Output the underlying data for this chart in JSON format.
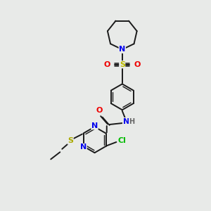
{
  "background_color": "#e8eae8",
  "bond_color": "#1a1a1a",
  "atom_colors": {
    "N": "#0000ee",
    "O": "#ee0000",
    "S_sulfonyl": "#bbbb00",
    "S_thioether": "#aaaa00",
    "Cl": "#00bb00",
    "H": "#666666",
    "C": "#1a1a1a"
  },
  "figsize": [
    3.0,
    3.0
  ],
  "dpi": 100
}
